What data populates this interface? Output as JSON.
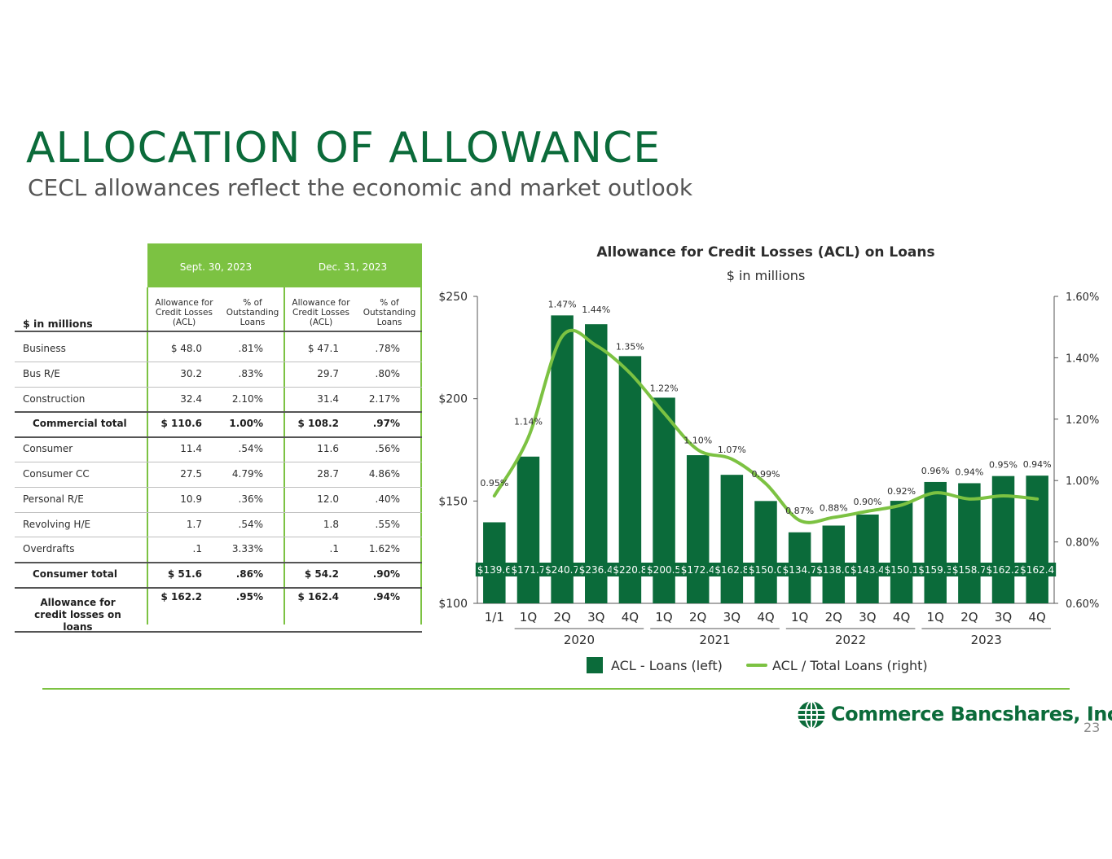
{
  "slide": {
    "title": "ALLOCATION OF ALLOWANCE",
    "subtitle": "CECL allowances reflect the economic and market outlook",
    "page_number": "23",
    "logo_text": "Commerce Bancshares, Inc.",
    "colors": {
      "primary_green": "#0b6b3a",
      "accent_green": "#7cc242",
      "bar_green": "#0b6b3a",
      "line_green": "#7cc242"
    }
  },
  "table": {
    "units_label": "$ in millions",
    "periods": [
      "Sept. 30, 2023",
      "Dec. 31, 2023"
    ],
    "col_acl": "Allowance for Credit Losses (ACL)",
    "col_pct": "% of Outstanding Loans",
    "rows": [
      {
        "label": "Business",
        "sep_acl": "$  48.0",
        "sep_pct": ".81%",
        "dec_acl": "$  47.1",
        "dec_pct": ".78%",
        "bold": false
      },
      {
        "label": "Bus R/E",
        "sep_acl": "30.2",
        "sep_pct": ".83%",
        "dec_acl": "29.7",
        "dec_pct": ".80%",
        "bold": false
      },
      {
        "label": "Construction",
        "sep_acl": "32.4",
        "sep_pct": "2.10%",
        "dec_acl": "31.4",
        "dec_pct": "2.17%",
        "bold": false
      },
      {
        "label": "Commercial total",
        "sep_acl": "$  110.6",
        "sep_pct": "1.00%",
        "dec_acl": "$  108.2",
        "dec_pct": ".97%",
        "bold": true
      },
      {
        "label": "Consumer",
        "sep_acl": "11.4",
        "sep_pct": ".54%",
        "dec_acl": "11.6",
        "dec_pct": ".56%",
        "bold": false
      },
      {
        "label": "Consumer CC",
        "sep_acl": "27.5",
        "sep_pct": "4.79%",
        "dec_acl": "28.7",
        "dec_pct": "4.86%",
        "bold": false
      },
      {
        "label": "Personal R/E",
        "sep_acl": "10.9",
        "sep_pct": ".36%",
        "dec_acl": "12.0",
        "dec_pct": ".40%",
        "bold": false
      },
      {
        "label": "Revolving H/E",
        "sep_acl": "1.7",
        "sep_pct": ".54%",
        "dec_acl": "1.8",
        "dec_pct": ".55%",
        "bold": false
      },
      {
        "label": "Overdrafts",
        "sep_acl": ".1",
        "sep_pct": "3.33%",
        "dec_acl": ".1",
        "dec_pct": "1.62%",
        "bold": false
      },
      {
        "label": "Consumer total",
        "sep_acl": "$  51.6",
        "sep_pct": ".86%",
        "dec_acl": "$  54.2",
        "dec_pct": ".90%",
        "bold": true
      },
      {
        "label": "Allowance for credit losses on loans",
        "sep_acl": "$  162.2",
        "sep_pct": ".95%",
        "dec_acl": "$  162.4",
        "dec_pct": ".94%",
        "bold": true
      }
    ]
  },
  "chart_data": {
    "type": "bar",
    "title": "Allowance for Credit Losses (ACL) on Loans",
    "subtitle": "$ in millions",
    "categories": [
      "1/1",
      "1Q",
      "2Q",
      "3Q",
      "4Q",
      "1Q",
      "2Q",
      "3Q",
      "4Q",
      "1Q",
      "2Q",
      "3Q",
      "4Q",
      "1Q",
      "2Q",
      "3Q",
      "4Q"
    ],
    "year_groups": [
      {
        "label": "2020",
        "start": 1,
        "end": 4
      },
      {
        "label": "2021",
        "start": 5,
        "end": 8
      },
      {
        "label": "2022",
        "start": 9,
        "end": 12
      },
      {
        "label": "2023",
        "start": 13,
        "end": 16
      }
    ],
    "series": [
      {
        "name": "ACL - Loans (left)",
        "type": "bar",
        "axis": "left",
        "color": "#0b6b3a",
        "values": [
          139.6,
          171.7,
          240.7,
          236.4,
          220.8,
          200.5,
          172.4,
          162.8,
          150.0,
          134.7,
          138.0,
          143.4,
          150.1,
          159.3,
          158.7,
          162.2,
          162.4
        ],
        "labels": [
          "$139.6",
          "$171.7",
          "$240.7",
          "$236.4",
          "$220.8",
          "$200.5",
          "$172.4",
          "$162.8",
          "$150.0",
          "$134.7",
          "$138.0",
          "$143.4",
          "$150.1",
          "$159.3",
          "$158.7",
          "$162.2",
          "$162.4"
        ]
      },
      {
        "name": "ACL / Total Loans  (right)",
        "type": "line",
        "axis": "right",
        "color": "#7cc242",
        "values": [
          0.95,
          1.14,
          1.47,
          1.44,
          1.35,
          1.22,
          1.1,
          1.07,
          0.99,
          0.87,
          0.88,
          0.9,
          0.92,
          0.96,
          0.94,
          0.95,
          0.94
        ],
        "labels": [
          "0.95%",
          "1.14%",
          "1.47%",
          "1.44%",
          "1.35%",
          "1.22%",
          "1.10%",
          "1.07%",
          "0.99%",
          "0.87%",
          "0.88%",
          "0.90%",
          "0.92%",
          "0.96%",
          "0.94%",
          "0.95%",
          "0.94%"
        ]
      }
    ],
    "y_left": {
      "min": 100,
      "max": 250,
      "ticks": [
        100,
        150,
        200,
        250
      ],
      "tick_labels": [
        "$100",
        "$150",
        "$200",
        "$250"
      ]
    },
    "y_right": {
      "min": 0.6,
      "max": 1.6,
      "ticks": [
        0.6,
        0.8,
        1.0,
        1.2,
        1.4,
        1.6
      ],
      "tick_labels": [
        "0.60%",
        "0.80%",
        "1.00%",
        "1.20%",
        "1.40%",
        "1.60%"
      ]
    },
    "legend_position": "bottom",
    "grid": false
  }
}
